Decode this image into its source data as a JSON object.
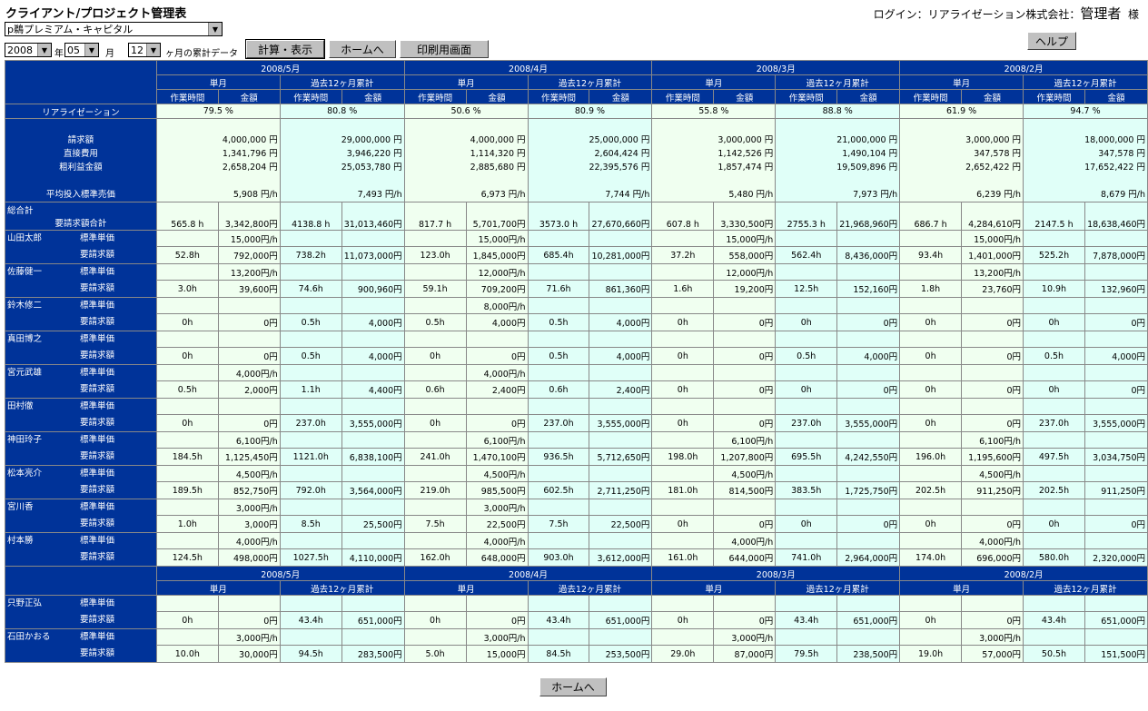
{
  "header": {
    "title": "クライアント/プロジェクト管理表",
    "login_prefix": "ログイン：リアライゼーション株式会社：",
    "login_user": "管理者",
    "login_suffix": "様",
    "help_label": "ヘルプ"
  },
  "controls": {
    "client": "p鵜プレミアム・キャピタル",
    "year": "2008",
    "year_unit": "年",
    "month": "05",
    "month_unit": "月",
    "span": "12",
    "span_unit": "ヶ月の累計データ",
    "calc_label": "計算・表示",
    "home_label": "ホームへ",
    "print_label": "印刷用画面"
  },
  "footer": {
    "home_label": "ホームへ"
  },
  "table": {
    "months": [
      "2008/5月",
      "2008/4月",
      "2008/3月",
      "2008/2月"
    ],
    "single_label": "単月",
    "cum_label": "過去12ヶ月累計",
    "hours_label": "作業時間",
    "amount_label": "金額",
    "realization_label": "リアライゼーション",
    "realization": [
      [
        "79.5 %",
        "80.8 %"
      ],
      [
        "50.6 %",
        "80.9 %"
      ],
      [
        "55.8 %",
        "88.8 %"
      ],
      [
        "61.9 %",
        "94.7 %"
      ]
    ],
    "summary_labels": [
      "請求額",
      "直接費用",
      "粗利益金額",
      "平均投入標準売価"
    ],
    "summary": [
      [
        [
          "4,000,000 円",
          "1,341,796 円",
          "2,658,204 円",
          "5,908 円/h"
        ],
        [
          "29,000,000 円",
          "3,946,220 円",
          "25,053,780 円",
          "7,493 円/h"
        ]
      ],
      [
        [
          "4,000,000 円",
          "1,114,320 円",
          "2,885,680 円",
          "6,973 円/h"
        ],
        [
          "25,000,000 円",
          "2,604,424 円",
          "22,395,576 円",
          "7,744 円/h"
        ]
      ],
      [
        [
          "3,000,000 円",
          "1,142,526 円",
          "1,857,474 円",
          "5,480 円/h"
        ],
        [
          "21,000,000 円",
          "1,490,104 円",
          "19,509,896 円",
          "7,973 円/h"
        ]
      ],
      [
        [
          "3,000,000 円",
          "347,578 円",
          "2,652,422 円",
          "6,239 円/h"
        ],
        [
          "18,000,000 円",
          "347,578 円",
          "17,652,422 円",
          "8,679 円/h"
        ]
      ]
    ],
    "total_label": "総合計",
    "total_sub_label": "要請求額合計",
    "totals": [
      [
        "565.8 h",
        "3,342,800円"
      ],
      [
        "4138.8 h",
        "31,013,460円"
      ],
      [
        "817.7 h",
        "5,701,700円"
      ],
      [
        "3573.0 h",
        "27,670,660円"
      ],
      [
        "607.8 h",
        "3,330,500円"
      ],
      [
        "2755.3 h",
        "21,968,960円"
      ],
      [
        "686.7 h",
        "4,284,610円"
      ],
      [
        "2147.5 h",
        "18,638,460円"
      ]
    ],
    "rate_label": "標準単価",
    "billing_label": "要請求額",
    "employees": [
      {
        "name": "山田太郎",
        "rates": [
          "15,000円/h",
          "15,000円/h",
          "15,000円/h",
          "15,000円/h"
        ],
        "cells": [
          [
            "52.8h",
            "792,000円"
          ],
          [
            "738.2h",
            "11,073,000円"
          ],
          [
            "123.0h",
            "1,845,000円"
          ],
          [
            "685.4h",
            "10,281,000円"
          ],
          [
            "37.2h",
            "558,000円"
          ],
          [
            "562.4h",
            "8,436,000円"
          ],
          [
            "93.4h",
            "1,401,000円"
          ],
          [
            "525.2h",
            "7,878,000円"
          ]
        ]
      },
      {
        "name": "佐藤健一",
        "rates": [
          "13,200円/h",
          "12,000円/h",
          "12,000円/h",
          "13,200円/h"
        ],
        "cells": [
          [
            "3.0h",
            "39,600円"
          ],
          [
            "74.6h",
            "900,960円"
          ],
          [
            "59.1h",
            "709,200円"
          ],
          [
            "71.6h",
            "861,360円"
          ],
          [
            "1.6h",
            "19,200円"
          ],
          [
            "12.5h",
            "152,160円"
          ],
          [
            "1.8h",
            "23,760円"
          ],
          [
            "10.9h",
            "132,960円"
          ]
        ]
      },
      {
        "name": "鈴木修二",
        "rates": [
          "",
          "8,000円/h",
          "",
          ""
        ],
        "cells": [
          [
            "0h",
            "0円"
          ],
          [
            "0.5h",
            "4,000円"
          ],
          [
            "0.5h",
            "4,000円"
          ],
          [
            "0.5h",
            "4,000円"
          ],
          [
            "0h",
            "0円"
          ],
          [
            "0h",
            "0円"
          ],
          [
            "0h",
            "0円"
          ],
          [
            "0h",
            "0円"
          ]
        ]
      },
      {
        "name": "真田博之",
        "rates": [
          "",
          "",
          "",
          ""
        ],
        "cells": [
          [
            "0h",
            "0円"
          ],
          [
            "0.5h",
            "4,000円"
          ],
          [
            "0h",
            "0円"
          ],
          [
            "0.5h",
            "4,000円"
          ],
          [
            "0h",
            "0円"
          ],
          [
            "0.5h",
            "4,000円"
          ],
          [
            "0h",
            "0円"
          ],
          [
            "0.5h",
            "4,000円"
          ]
        ]
      },
      {
        "name": "宮元武雄",
        "rates": [
          "4,000円/h",
          "4,000円/h",
          "",
          ""
        ],
        "cells": [
          [
            "0.5h",
            "2,000円"
          ],
          [
            "1.1h",
            "4,400円"
          ],
          [
            "0.6h",
            "2,400円"
          ],
          [
            "0.6h",
            "2,400円"
          ],
          [
            "0h",
            "0円"
          ],
          [
            "0h",
            "0円"
          ],
          [
            "0h",
            "0円"
          ],
          [
            "0h",
            "0円"
          ]
        ]
      },
      {
        "name": "田村徹",
        "rates": [
          "",
          "",
          "",
          ""
        ],
        "cells": [
          [
            "0h",
            "0円"
          ],
          [
            "237.0h",
            "3,555,000円"
          ],
          [
            "0h",
            "0円"
          ],
          [
            "237.0h",
            "3,555,000円"
          ],
          [
            "0h",
            "0円"
          ],
          [
            "237.0h",
            "3,555,000円"
          ],
          [
            "0h",
            "0円"
          ],
          [
            "237.0h",
            "3,555,000円"
          ]
        ]
      },
      {
        "name": "神田玲子",
        "rates": [
          "6,100円/h",
          "6,100円/h",
          "6,100円/h",
          "6,100円/h"
        ],
        "cells": [
          [
            "184.5h",
            "1,125,450円"
          ],
          [
            "1121.0h",
            "6,838,100円"
          ],
          [
            "241.0h",
            "1,470,100円"
          ],
          [
            "936.5h",
            "5,712,650円"
          ],
          [
            "198.0h",
            "1,207,800円"
          ],
          [
            "695.5h",
            "4,242,550円"
          ],
          [
            "196.0h",
            "1,195,600円"
          ],
          [
            "497.5h",
            "3,034,750円"
          ]
        ]
      },
      {
        "name": "松本亮介",
        "rates": [
          "4,500円/h",
          "4,500円/h",
          "4,500円/h",
          "4,500円/h"
        ],
        "cells": [
          [
            "189.5h",
            "852,750円"
          ],
          [
            "792.0h",
            "3,564,000円"
          ],
          [
            "219.0h",
            "985,500円"
          ],
          [
            "602.5h",
            "2,711,250円"
          ],
          [
            "181.0h",
            "814,500円"
          ],
          [
            "383.5h",
            "1,725,750円"
          ],
          [
            "202.5h",
            "911,250円"
          ],
          [
            "202.5h",
            "911,250円"
          ]
        ]
      },
      {
        "name": "宮川香",
        "rates": [
          "3,000円/h",
          "3,000円/h",
          "",
          ""
        ],
        "cells": [
          [
            "1.0h",
            "3,000円"
          ],
          [
            "8.5h",
            "25,500円"
          ],
          [
            "7.5h",
            "22,500円"
          ],
          [
            "7.5h",
            "22,500円"
          ],
          [
            "0h",
            "0円"
          ],
          [
            "0h",
            "0円"
          ],
          [
            "0h",
            "0円"
          ],
          [
            "0h",
            "0円"
          ]
        ]
      },
      {
        "name": "村本勝",
        "rates": [
          "4,000円/h",
          "4,000円/h",
          "4,000円/h",
          "4,000円/h"
        ],
        "cells": [
          [
            "124.5h",
            "498,000円"
          ],
          [
            "1027.5h",
            "4,110,000円"
          ],
          [
            "162.0h",
            "648,000円"
          ],
          [
            "903.0h",
            "3,612,000円"
          ],
          [
            "161.0h",
            "644,000円"
          ],
          [
            "741.0h",
            "2,964,000円"
          ],
          [
            "174.0h",
            "696,000円"
          ],
          [
            "580.0h",
            "2,320,000円"
          ]
        ]
      }
    ],
    "employees2": [
      {
        "name": "只野正弘",
        "rates": [
          "",
          "",
          "",
          ""
        ],
        "cells": [
          [
            "0h",
            "0円"
          ],
          [
            "43.4h",
            "651,000円"
          ],
          [
            "0h",
            "0円"
          ],
          [
            "43.4h",
            "651,000円"
          ],
          [
            "0h",
            "0円"
          ],
          [
            "43.4h",
            "651,000円"
          ],
          [
            "0h",
            "0円"
          ],
          [
            "43.4h",
            "651,000円"
          ]
        ]
      },
      {
        "name": "石田かおる",
        "rates": [
          "3,000円/h",
          "3,000円/h",
          "3,000円/h",
          "3,000円/h"
        ],
        "cells": [
          [
            "10.0h",
            "30,000円"
          ],
          [
            "94.5h",
            "283,500円"
          ],
          [
            "5.0h",
            "15,000円"
          ],
          [
            "84.5h",
            "253,500円"
          ],
          [
            "29.0h",
            "87,000円"
          ],
          [
            "79.5h",
            "238,500円"
          ],
          [
            "19.0h",
            "57,000円"
          ],
          [
            "50.5h",
            "151,500円"
          ]
        ]
      }
    ]
  },
  "colors": {
    "header": "#003399",
    "single": "#f0fff0",
    "cumulative": "#e0fff8"
  }
}
